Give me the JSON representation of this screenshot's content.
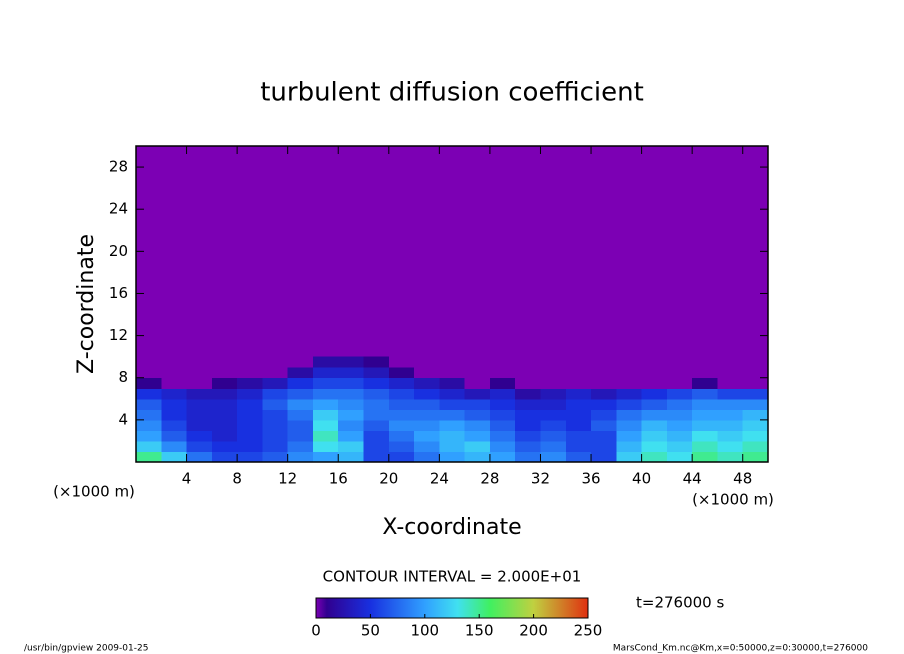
{
  "chart_data": {
    "type": "contour",
    "title": "turbulent diffusion coefficient",
    "x_label": "X-coordinate",
    "y_label": "Z-coordinate",
    "x_unit": "(×1000 m)",
    "y_unit": "(×1000 m)",
    "x": [
      1,
      3,
      5,
      7,
      9,
      11,
      13,
      15,
      17,
      19,
      21,
      23,
      25,
      27,
      29,
      31,
      33,
      35,
      37,
      39,
      41,
      43,
      45,
      47,
      49
    ],
    "z": [
      0.5,
      1.5,
      2.5,
      3.5,
      4.5,
      5.5,
      6.5,
      7.5,
      8.5,
      9.5
    ],
    "values": [
      [
        150,
        120,
        80,
        60,
        60,
        70,
        90,
        100,
        110,
        60,
        60,
        80,
        100,
        110,
        100,
        80,
        90,
        70,
        60,
        120,
        140,
        130,
        150,
        140,
        150
      ],
      [
        120,
        90,
        60,
        50,
        50,
        60,
        80,
        130,
        120,
        60,
        70,
        90,
        110,
        120,
        90,
        70,
        80,
        60,
        60,
        110,
        130,
        120,
        140,
        130,
        140
      ],
      [
        100,
        70,
        50,
        40,
        50,
        60,
        70,
        140,
        100,
        60,
        80,
        100,
        110,
        100,
        80,
        60,
        70,
        60,
        60,
        100,
        120,
        110,
        130,
        120,
        130
      ],
      [
        90,
        60,
        40,
        40,
        50,
        60,
        70,
        130,
        90,
        70,
        90,
        90,
        100,
        90,
        70,
        50,
        60,
        50,
        70,
        90,
        110,
        100,
        110,
        110,
        120
      ],
      [
        80,
        50,
        40,
        40,
        50,
        60,
        80,
        120,
        100,
        80,
        80,
        80,
        80,
        70,
        60,
        50,
        50,
        50,
        60,
        80,
        90,
        90,
        100,
        100,
        110
      ],
      [
        70,
        50,
        40,
        40,
        50,
        70,
        90,
        100,
        90,
        80,
        70,
        70,
        60,
        60,
        50,
        40,
        40,
        50,
        50,
        60,
        70,
        80,
        90,
        90,
        90
      ],
      [
        50,
        40,
        30,
        30,
        40,
        60,
        70,
        80,
        80,
        70,
        60,
        50,
        40,
        30,
        40,
        20,
        30,
        40,
        30,
        40,
        50,
        60,
        70,
        60,
        60
      ],
      [
        10,
        0,
        0,
        10,
        20,
        30,
        50,
        60,
        60,
        50,
        40,
        30,
        20,
        0,
        10,
        0,
        0,
        0,
        0,
        0,
        0,
        0,
        10,
        0,
        0
      ],
      [
        0,
        0,
        0,
        0,
        0,
        0,
        20,
        40,
        40,
        30,
        10,
        0,
        0,
        0,
        0,
        0,
        0,
        0,
        0,
        0,
        0,
        0,
        0,
        0,
        0
      ],
      [
        0,
        0,
        0,
        0,
        0,
        0,
        0,
        20,
        20,
        10,
        0,
        0,
        0,
        0,
        0,
        0,
        0,
        0,
        0,
        0,
        0,
        0,
        0,
        0,
        0
      ]
    ],
    "background_color": "#7c00b4",
    "colormap": [
      [
        0,
        "#7c00b4"
      ],
      [
        10,
        "#300090"
      ],
      [
        50,
        "#1830e0"
      ],
      [
        100,
        "#30a0ff"
      ],
      [
        130,
        "#40e0f0"
      ],
      [
        160,
        "#40f060"
      ],
      [
        200,
        "#c0d040"
      ],
      [
        250,
        "#e03010"
      ]
    ],
    "xlim": [
      0,
      50
    ],
    "ylim": [
      0,
      30
    ],
    "xticks": [
      4,
      8,
      12,
      16,
      20,
      24,
      28,
      32,
      36,
      40,
      44,
      48
    ],
    "yticks": [
      4,
      8,
      12,
      16,
      20,
      24,
      28
    ],
    "contour_interval_label": "CONTOUR INTERVAL = 2.000E+01",
    "colorbar_lim": [
      0,
      250
    ],
    "colorbar_ticks": [
      0,
      50,
      100,
      150,
      200,
      250
    ],
    "time_label": "t=276000 s",
    "footer_left": "/usr/bin/gpview  2009-01-25",
    "footer_right": "MarsCond_Km.nc@Km,x=0:50000,z=0:30000,t=276000"
  }
}
